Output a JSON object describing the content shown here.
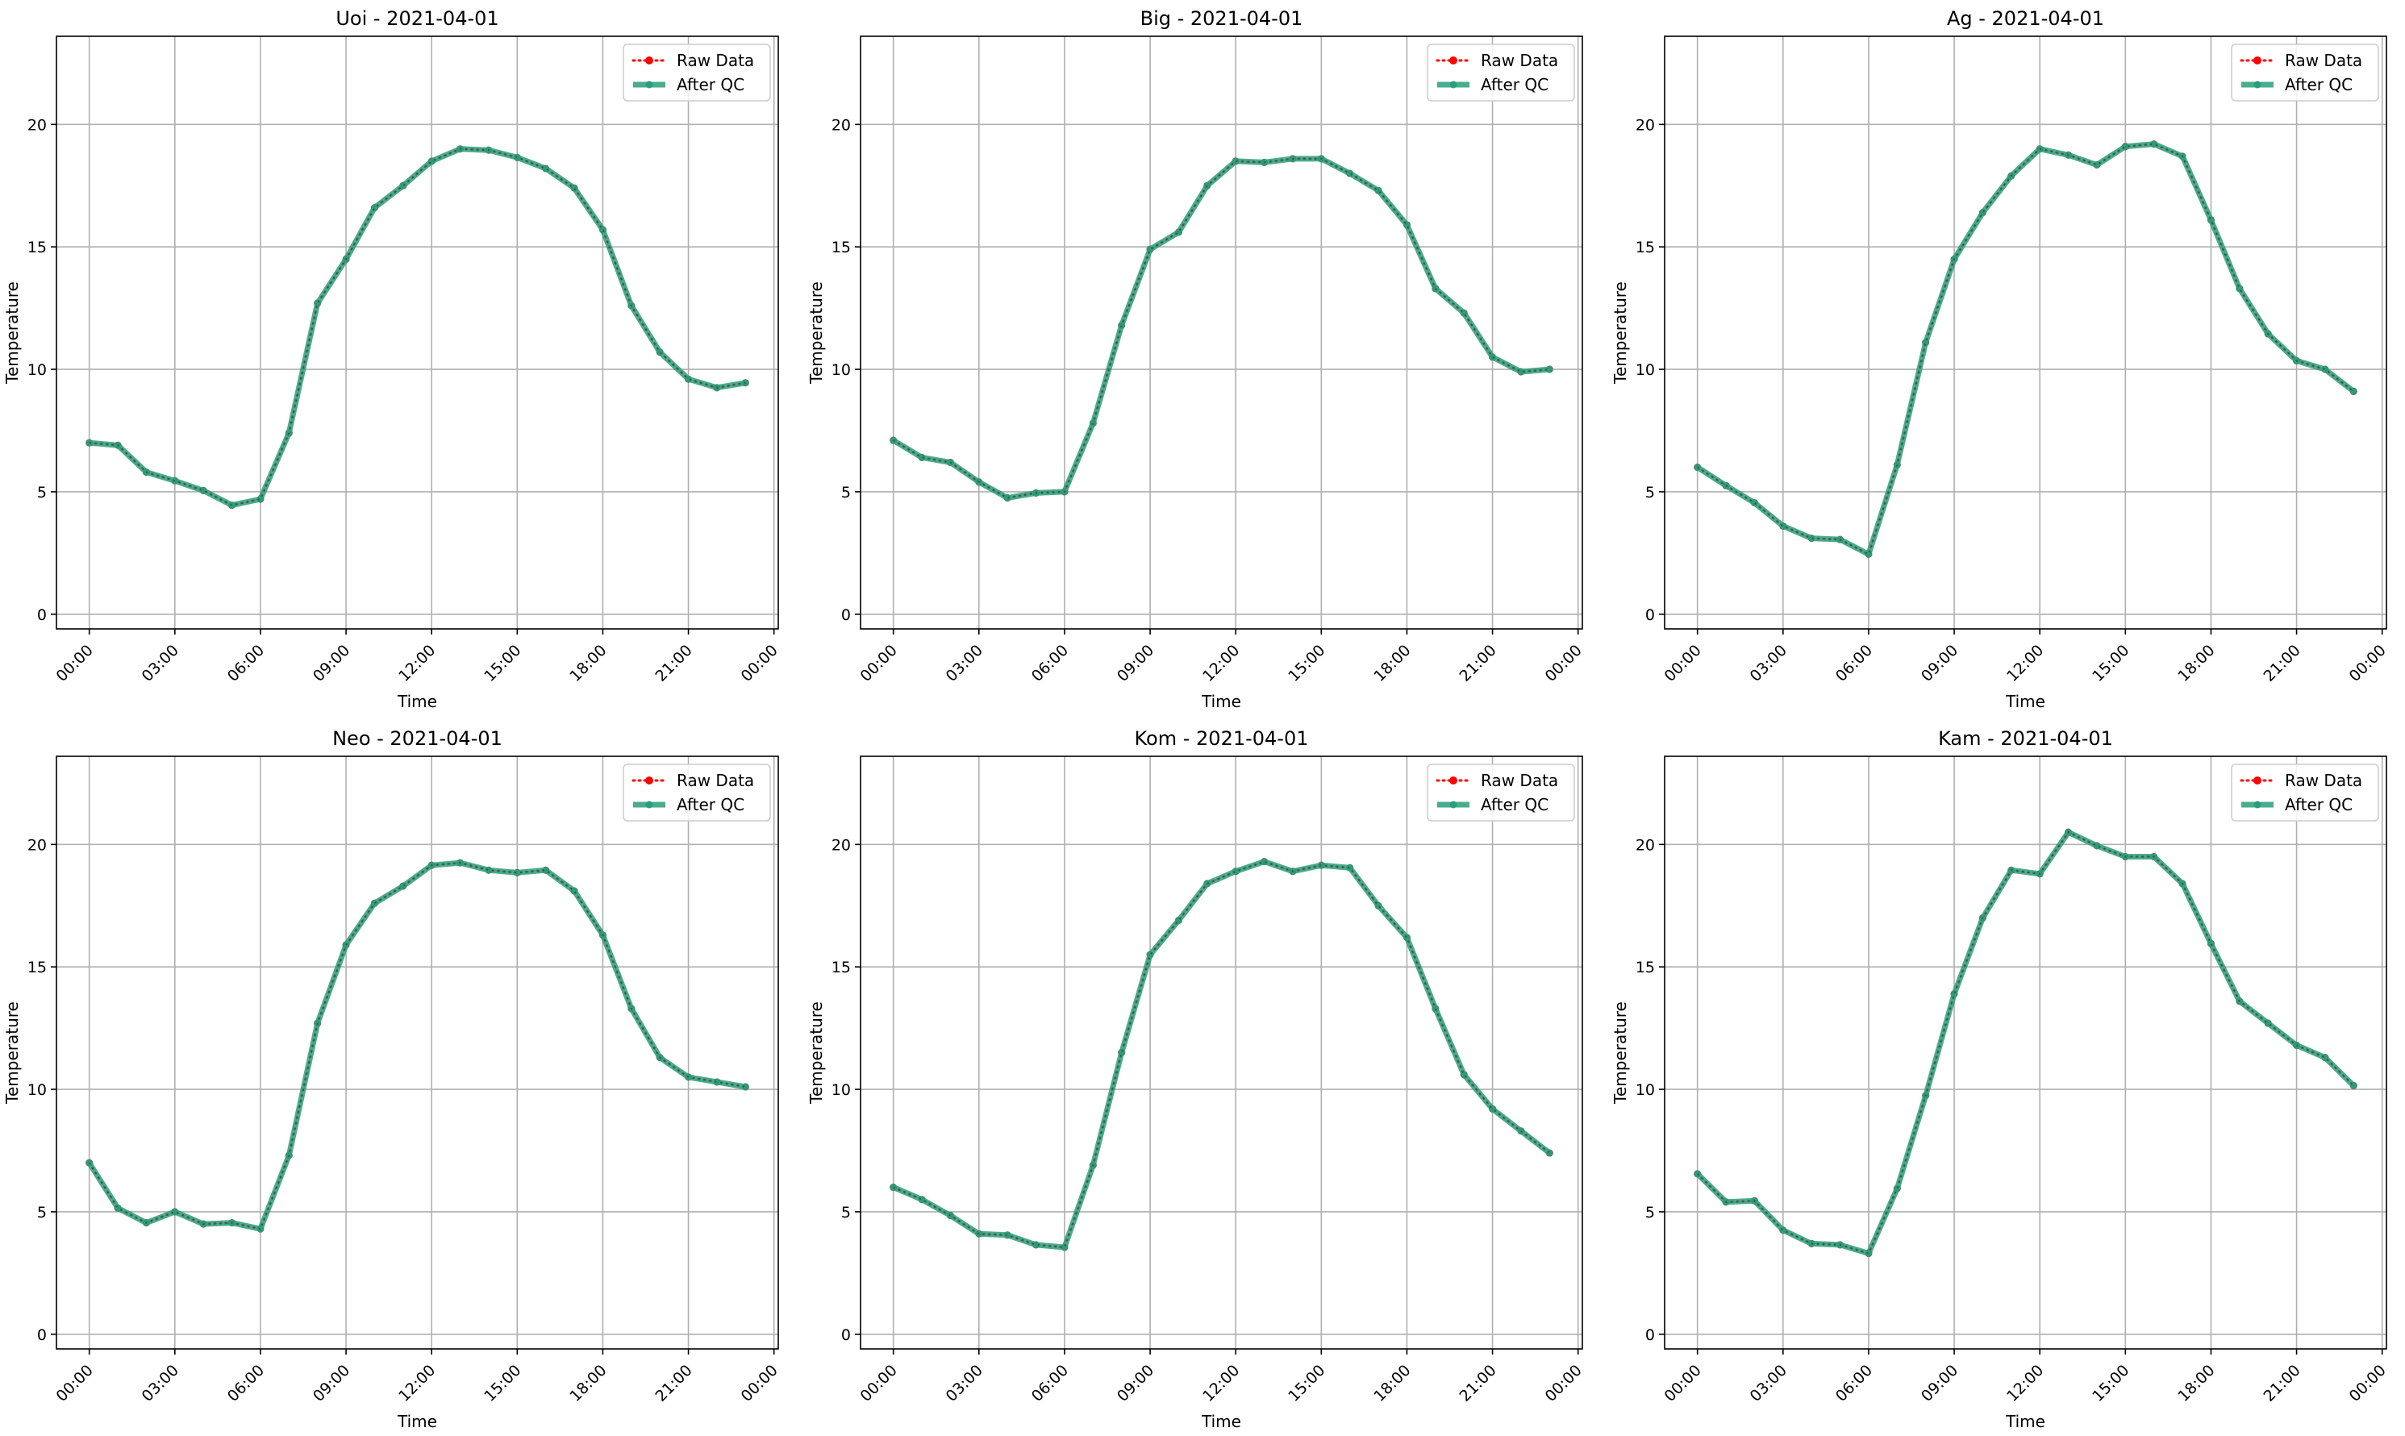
{
  "figure": {
    "background": "#ffffff",
    "raw_color": "#ff0000",
    "qc_color": "#2a9d7a",
    "grid_color": "#b0b0b0"
  },
  "chart_data": [
    {
      "type": "line",
      "title": "Uoi - 2021-04-01",
      "xlabel": "Time",
      "ylabel": "Temperature",
      "xlim": [
        -1.15,
        24.15
      ],
      "ylim": [
        -0.6,
        23.6
      ],
      "x_ticks": [
        0,
        3,
        6,
        9,
        12,
        15,
        18,
        21,
        24
      ],
      "x_tick_labels": [
        "00:00",
        "03:00",
        "06:00",
        "09:00",
        "12:00",
        "15:00",
        "18:00",
        "21:00",
        "00:00"
      ],
      "y_ticks": [
        0,
        5,
        10,
        15,
        20
      ],
      "y_tick_labels": [
        "0",
        "5",
        "10",
        "15",
        "20"
      ],
      "grid": true,
      "legend": "upper right",
      "x": [
        0,
        1,
        2,
        3,
        4,
        5,
        6,
        7,
        8,
        9,
        10,
        11,
        12,
        13,
        14,
        15,
        16,
        17,
        18,
        19,
        20,
        21,
        22,
        23
      ],
      "series": [
        {
          "name": "Raw Data",
          "style": "dotted",
          "values": [
            7.0,
            6.9,
            5.8,
            5.45,
            5.05,
            4.45,
            4.7,
            7.4,
            12.7,
            14.5,
            16.6,
            17.5,
            18.5,
            19.0,
            18.95,
            18.65,
            18.2,
            17.4,
            15.7,
            12.6,
            10.7,
            9.6,
            9.25,
            9.45
          ]
        },
        {
          "name": "After QC",
          "style": "solid",
          "values": [
            7.0,
            6.9,
            5.8,
            5.45,
            5.05,
            4.45,
            4.7,
            7.4,
            12.7,
            14.5,
            16.6,
            17.5,
            18.5,
            19.0,
            18.95,
            18.65,
            18.2,
            17.4,
            15.7,
            12.6,
            10.7,
            9.6,
            9.25,
            9.45
          ]
        }
      ]
    },
    {
      "type": "line",
      "title": "Big - 2021-04-01",
      "xlabel": "Time",
      "ylabel": "Temperature",
      "xlim": [
        -1.15,
        24.15
      ],
      "ylim": [
        -0.6,
        23.6
      ],
      "x_ticks": [
        0,
        3,
        6,
        9,
        12,
        15,
        18,
        21,
        24
      ],
      "x_tick_labels": [
        "00:00",
        "03:00",
        "06:00",
        "09:00",
        "12:00",
        "15:00",
        "18:00",
        "21:00",
        "00:00"
      ],
      "y_ticks": [
        0,
        5,
        10,
        15,
        20
      ],
      "y_tick_labels": [
        "0",
        "5",
        "10",
        "15",
        "20"
      ],
      "grid": true,
      "legend": "upper right",
      "x": [
        0,
        1,
        2,
        3,
        4,
        5,
        6,
        7,
        8,
        9,
        10,
        11,
        12,
        13,
        14,
        15,
        16,
        17,
        18,
        19,
        20,
        21,
        22,
        23
      ],
      "series": [
        {
          "name": "Raw Data",
          "style": "dotted",
          "values": [
            7.1,
            6.4,
            6.2,
            5.4,
            4.75,
            4.95,
            5.0,
            7.8,
            11.8,
            14.9,
            15.6,
            17.5,
            18.5,
            18.45,
            18.6,
            18.6,
            18.0,
            17.3,
            15.9,
            13.3,
            12.3,
            10.5,
            9.9,
            10.0
          ]
        },
        {
          "name": "After QC",
          "style": "solid",
          "values": [
            7.1,
            6.4,
            6.2,
            5.4,
            4.75,
            4.95,
            5.0,
            7.8,
            11.8,
            14.9,
            15.6,
            17.5,
            18.5,
            18.45,
            18.6,
            18.6,
            18.0,
            17.3,
            15.9,
            13.3,
            12.3,
            10.5,
            9.9,
            10.0
          ]
        }
      ]
    },
    {
      "type": "line",
      "title": "Ag - 2021-04-01",
      "xlabel": "Time",
      "ylabel": "Temperature",
      "xlim": [
        -1.15,
        24.15
      ],
      "ylim": [
        -0.6,
        23.6
      ],
      "x_ticks": [
        0,
        3,
        6,
        9,
        12,
        15,
        18,
        21,
        24
      ],
      "x_tick_labels": [
        "00:00",
        "03:00",
        "06:00",
        "09:00",
        "12:00",
        "15:00",
        "18:00",
        "21:00",
        "00:00"
      ],
      "y_ticks": [
        0,
        5,
        10,
        15,
        20
      ],
      "y_tick_labels": [
        "0",
        "5",
        "10",
        "15",
        "20"
      ],
      "grid": true,
      "legend": "upper right",
      "x": [
        0,
        1,
        2,
        3,
        4,
        5,
        6,
        7,
        8,
        9,
        10,
        11,
        12,
        13,
        14,
        15,
        16,
        17,
        18,
        19,
        20,
        21,
        22,
        23
      ],
      "series": [
        {
          "name": "Raw Data",
          "style": "dotted",
          "values": [
            6.0,
            5.25,
            4.55,
            3.6,
            3.1,
            3.05,
            2.45,
            6.1,
            11.1,
            14.5,
            16.4,
            17.9,
            19.0,
            18.75,
            18.35,
            19.1,
            19.2,
            18.7,
            16.1,
            13.3,
            11.45,
            10.35,
            10.0,
            9.1
          ]
        },
        {
          "name": "After QC",
          "style": "solid",
          "values": [
            6.0,
            5.25,
            4.55,
            3.6,
            3.1,
            3.05,
            2.45,
            6.1,
            11.1,
            14.5,
            16.4,
            17.9,
            19.0,
            18.75,
            18.35,
            19.1,
            19.2,
            18.7,
            16.1,
            13.3,
            11.45,
            10.35,
            10.0,
            9.1
          ]
        }
      ]
    },
    {
      "type": "line",
      "title": "Neo - 2021-04-01",
      "xlabel": "Time",
      "ylabel": "Temperature",
      "xlim": [
        -1.15,
        24.15
      ],
      "ylim": [
        -0.6,
        23.6
      ],
      "x_ticks": [
        0,
        3,
        6,
        9,
        12,
        15,
        18,
        21,
        24
      ],
      "x_tick_labels": [
        "00:00",
        "03:00",
        "06:00",
        "09:00",
        "12:00",
        "15:00",
        "18:00",
        "21:00",
        "00:00"
      ],
      "y_ticks": [
        0,
        5,
        10,
        15,
        20
      ],
      "y_tick_labels": [
        "0",
        "5",
        "10",
        "15",
        "20"
      ],
      "grid": true,
      "legend": "upper right",
      "x": [
        0,
        1,
        2,
        3,
        4,
        5,
        6,
        7,
        8,
        9,
        10,
        11,
        12,
        13,
        14,
        15,
        16,
        17,
        18,
        19,
        20,
        21,
        22,
        23
      ],
      "series": [
        {
          "name": "Raw Data",
          "style": "dotted",
          "values": [
            7.0,
            5.15,
            4.55,
            5.0,
            4.5,
            4.55,
            4.3,
            7.3,
            12.7,
            15.9,
            17.6,
            18.3,
            19.15,
            19.25,
            18.95,
            18.85,
            18.95,
            18.1,
            16.3,
            13.3,
            11.3,
            10.5,
            10.3,
            10.1
          ]
        },
        {
          "name": "After QC",
          "style": "solid",
          "values": [
            7.0,
            5.15,
            4.55,
            5.0,
            4.5,
            4.55,
            4.3,
            7.3,
            12.7,
            15.9,
            17.6,
            18.3,
            19.15,
            19.25,
            18.95,
            18.85,
            18.95,
            18.1,
            16.3,
            13.3,
            11.3,
            10.5,
            10.3,
            10.1
          ]
        }
      ]
    },
    {
      "type": "line",
      "title": "Kom - 2021-04-01",
      "xlabel": "Time",
      "ylabel": "Temperature",
      "xlim": [
        -1.15,
        24.15
      ],
      "ylim": [
        -0.6,
        23.6
      ],
      "x_ticks": [
        0,
        3,
        6,
        9,
        12,
        15,
        18,
        21,
        24
      ],
      "x_tick_labels": [
        "00:00",
        "03:00",
        "06:00",
        "09:00",
        "12:00",
        "15:00",
        "18:00",
        "21:00",
        "00:00"
      ],
      "y_ticks": [
        0,
        5,
        10,
        15,
        20
      ],
      "y_tick_labels": [
        "0",
        "5",
        "10",
        "15",
        "20"
      ],
      "grid": true,
      "legend": "upper right",
      "x": [
        0,
        1,
        2,
        3,
        4,
        5,
        6,
        7,
        8,
        9,
        10,
        11,
        12,
        13,
        14,
        15,
        16,
        17,
        18,
        19,
        20,
        21,
        22,
        23
      ],
      "series": [
        {
          "name": "Raw Data",
          "style": "dotted",
          "values": [
            6.0,
            5.5,
            4.85,
            4.1,
            4.05,
            3.65,
            3.55,
            6.9,
            11.5,
            15.5,
            16.9,
            18.4,
            18.9,
            19.3,
            18.9,
            19.15,
            19.05,
            17.5,
            16.2,
            13.3,
            10.6,
            9.2,
            8.3,
            7.4
          ]
        },
        {
          "name": "After QC",
          "style": "solid",
          "values": [
            6.0,
            5.5,
            4.85,
            4.1,
            4.05,
            3.65,
            3.55,
            6.9,
            11.5,
            15.5,
            16.9,
            18.4,
            18.9,
            19.3,
            18.9,
            19.15,
            19.05,
            17.5,
            16.2,
            13.3,
            10.6,
            9.2,
            8.3,
            7.4
          ]
        }
      ]
    },
    {
      "type": "line",
      "title": "Kam - 2021-04-01",
      "xlabel": "Time",
      "ylabel": "Temperature",
      "xlim": [
        -1.15,
        24.15
      ],
      "ylim": [
        -0.6,
        23.6
      ],
      "x_ticks": [
        0,
        3,
        6,
        9,
        12,
        15,
        18,
        21,
        24
      ],
      "x_tick_labels": [
        "00:00",
        "03:00",
        "06:00",
        "09:00",
        "12:00",
        "15:00",
        "18:00",
        "21:00",
        "00:00"
      ],
      "y_ticks": [
        0,
        5,
        10,
        15,
        20
      ],
      "y_tick_labels": [
        "0",
        "5",
        "10",
        "15",
        "20"
      ],
      "grid": true,
      "legend": "upper right",
      "x": [
        0,
        1,
        2,
        3,
        4,
        5,
        6,
        7,
        8,
        9,
        10,
        11,
        12,
        13,
        14,
        15,
        16,
        17,
        18,
        19,
        20,
        21,
        22,
        23
      ],
      "series": [
        {
          "name": "Raw Data",
          "style": "dotted",
          "values": [
            6.55,
            5.4,
            5.45,
            4.25,
            3.7,
            3.65,
            3.3,
            5.95,
            9.75,
            13.9,
            17.0,
            18.95,
            18.8,
            20.5,
            19.95,
            19.5,
            19.5,
            18.4,
            15.95,
            13.6,
            12.7,
            11.8,
            11.3,
            10.15
          ]
        },
        {
          "name": "After QC",
          "style": "solid",
          "values": [
            6.55,
            5.4,
            5.45,
            4.25,
            3.7,
            3.65,
            3.3,
            5.95,
            9.75,
            13.9,
            17.0,
            18.95,
            18.8,
            20.5,
            19.95,
            19.5,
            19.5,
            18.4,
            15.95,
            13.6,
            12.7,
            11.8,
            11.3,
            10.15
          ]
        }
      ]
    }
  ]
}
